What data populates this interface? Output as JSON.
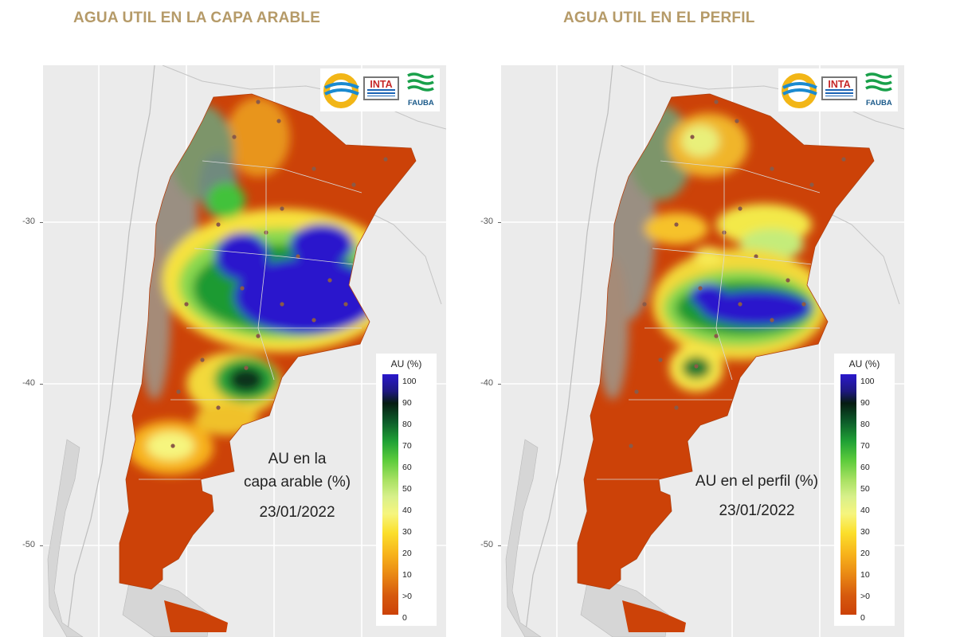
{
  "titles": {
    "left": "AGUA UTIL EN LA CAPA ARABLE",
    "right": "AGUA UTIL EN EL PERFIL"
  },
  "axis": {
    "y_ticks": [
      "-30",
      "-40",
      "-50"
    ]
  },
  "logos": {
    "inta": "INTA",
    "fauba": "FAUBA"
  },
  "legend": {
    "title": "AU (%)",
    "labels": [
      "100",
      "90",
      "80",
      "70",
      "60",
      "50",
      "40",
      "30",
      "20",
      "10",
      ">0",
      "0"
    ]
  },
  "maps": [
    {
      "annotation_lines": [
        "AU en la",
        "capa arable (%)",
        "23/01/2022"
      ]
    },
    {
      "annotation_lines": [
        "AU en el perfil (%)",
        "23/01/2022"
      ]
    }
  ],
  "colors": {
    "title": "#b59a68",
    "dry": "#cc4208",
    "wet": "#2a18cc",
    "background": "#ebebeb"
  }
}
